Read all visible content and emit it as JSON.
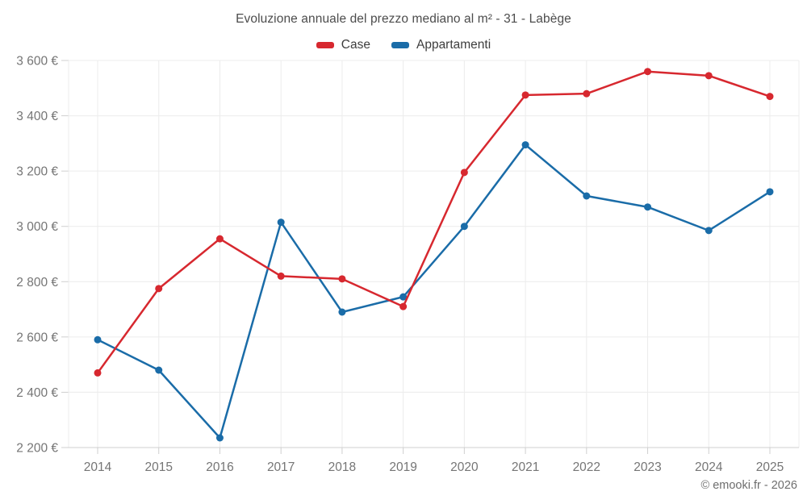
{
  "title": "Evoluzione annuale del prezzo mediano al m² - 31 - Labège",
  "footer": "© emooki.fr - 2026",
  "legend": [
    {
      "label": "Case",
      "color": "#d7282f"
    },
    {
      "label": "Appartamenti",
      "color": "#1a6ca8"
    }
  ],
  "chart_data": {
    "type": "line",
    "title": "Evoluzione annuale del prezzo mediano al m² - 31 - Labège",
    "categories": [
      "2014",
      "2015",
      "2016",
      "2017",
      "2018",
      "2019",
      "2020",
      "2021",
      "2022",
      "2023",
      "2024",
      "2025"
    ],
    "series": [
      {
        "name": "Case",
        "color": "#d7282f",
        "values": [
          2470,
          2775,
          2955,
          2820,
          2810,
          2710,
          3195,
          3475,
          3480,
          3560,
          3545,
          3470
        ]
      },
      {
        "name": "Appartamenti",
        "color": "#1a6ca8",
        "values": [
          2590,
          2480,
          2235,
          3015,
          2690,
          2745,
          3000,
          3295,
          3110,
          3070,
          2985,
          3125
        ]
      }
    ],
    "ylim": [
      2200,
      3600
    ],
    "ytick_step": 200,
    "ytick_suffix": " €",
    "xlabel": "",
    "ylabel": "",
    "grid": true,
    "legend_position": "top",
    "colors": {
      "grid": "#ececec",
      "axis": "#cfcfcf",
      "tick_label": "#757575",
      "title_text": "#4c4c4c",
      "background": "#ffffff"
    }
  }
}
